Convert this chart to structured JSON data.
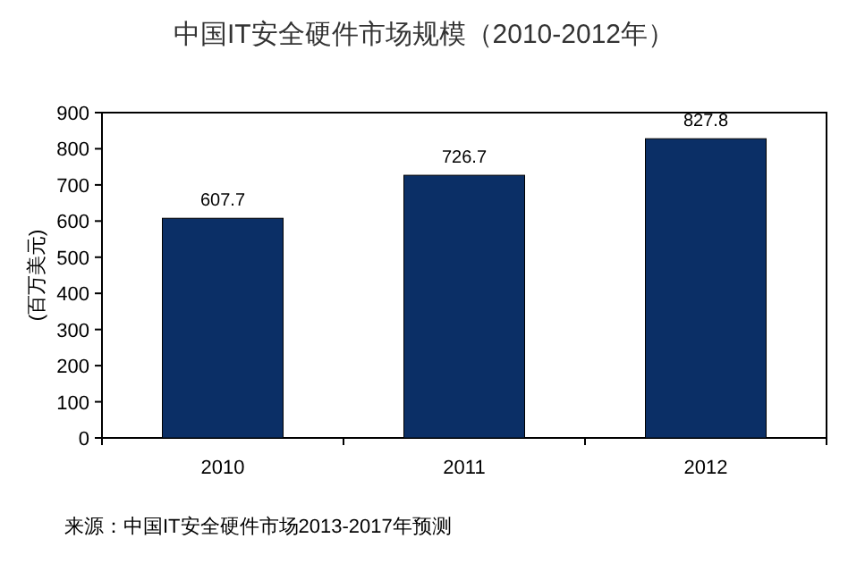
{
  "chart_data": {
    "type": "bar",
    "title": "中国IT安全硬件市场规模（2010-2012年）",
    "ylabel": "(百万美元)",
    "categories": [
      "2010",
      "2011",
      "2012"
    ],
    "series": [
      {
        "color": "#0b2f66",
        "values": [
          607.7,
          726.7,
          827.8
        ]
      }
    ],
    "ylim": [
      0,
      900
    ],
    "yticks": [
      0,
      100,
      200,
      300,
      400,
      500,
      600,
      700,
      800,
      900
    ],
    "data_labels": true,
    "grid": false,
    "annotations": [
      "来源：中国IT安全硬件市场2013-2017年预测"
    ]
  }
}
